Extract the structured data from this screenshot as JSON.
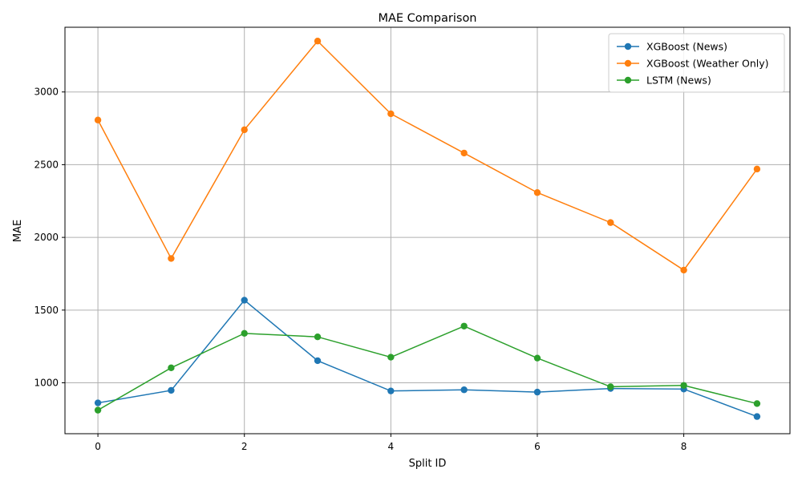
{
  "chart_data": {
    "type": "line",
    "title": "MAE Comparison",
    "xlabel": "Split ID",
    "ylabel": "MAE",
    "x": [
      0,
      1,
      2,
      3,
      4,
      5,
      6,
      7,
      8,
      9
    ],
    "xlim": [
      -0.45,
      9.45
    ],
    "ylim": [
      650,
      3445
    ],
    "x_ticks": [
      0,
      2,
      4,
      6,
      8
    ],
    "y_ticks": [
      1000,
      1500,
      2000,
      2500,
      3000
    ],
    "grid": true,
    "legend_position": "top-right",
    "series": [
      {
        "name": "XGBoost (News)",
        "color": "#1f77b4",
        "values": [
          862,
          948,
          1568,
          1152,
          944,
          952,
          936,
          961,
          957,
          768
        ]
      },
      {
        "name": "XGBoost (Weather Only)",
        "color": "#ff7f0e",
        "values": [
          2807,
          1855,
          2740,
          3350,
          2850,
          2580,
          2308,
          2102,
          1775,
          2470
        ]
      },
      {
        "name": "LSTM (News)",
        "color": "#2ca02c",
        "values": [
          812,
          1103,
          1340,
          1316,
          1176,
          1390,
          1170,
          973,
          982,
          857
        ]
      }
    ]
  }
}
